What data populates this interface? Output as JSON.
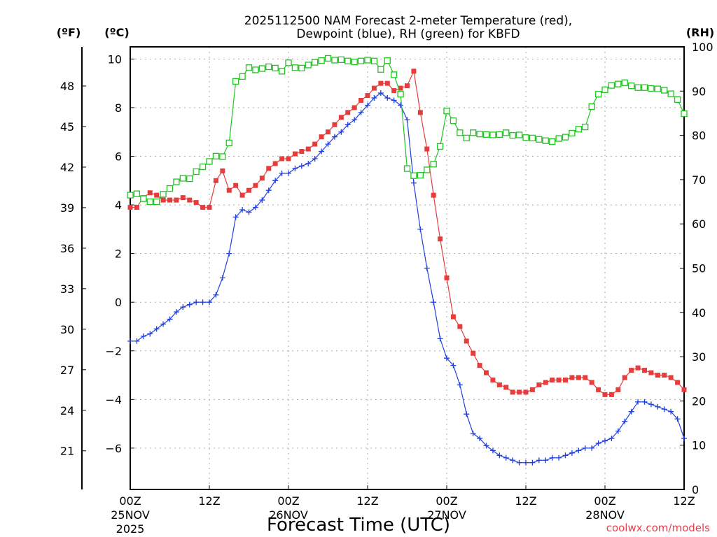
{
  "chart_data": {
    "type": "line",
    "title": [
      "2025112500 NAM Forecast 2-meter Temperature (red),",
      "Dewpoint (blue), RH (green) for KBFD"
    ],
    "xlabel": "Forecast Time (UTC)",
    "credit": "coolwx.com/models",
    "units": {
      "fahrenheit": "(ºF)",
      "celsius": "(ºC)",
      "rh": "(RH)"
    },
    "x_range_hours": [
      0,
      84
    ],
    "x_ticks": [
      {
        "hour": 0,
        "label": "00Z",
        "date": "25NOV",
        "year": "2025"
      },
      {
        "hour": 12,
        "label": "12Z",
        "date": "",
        "year": ""
      },
      {
        "hour": 24,
        "label": "00Z",
        "date": "26NOV",
        "year": ""
      },
      {
        "hour": 36,
        "label": "12Z",
        "date": "",
        "year": ""
      },
      {
        "hour": 48,
        "label": "00Z",
        "date": "27NOV",
        "year": ""
      },
      {
        "hour": 60,
        "label": "12Z",
        "date": "",
        "year": ""
      },
      {
        "hour": 72,
        "label": "00Z",
        "date": "28NOV",
        "year": ""
      },
      {
        "hour": 84,
        "label": "12Z",
        "date": "",
        "year": ""
      }
    ],
    "y_celsius": {
      "range": [
        -7.7,
        10.5
      ],
      "ticks": [
        10,
        8,
        6,
        4,
        2,
        0,
        -2,
        -4,
        -6
      ],
      "labels": [
        "10",
        "8",
        "6",
        "4",
        "2",
        "0",
        "−2",
        "−4",
        "−6"
      ]
    },
    "y_fahrenheit": {
      "range": [
        18.14,
        50.9
      ],
      "ticks": [
        48,
        45,
        42,
        39,
        36,
        33,
        30,
        27,
        24,
        21
      ],
      "labels": [
        "48",
        "45",
        "42",
        "39",
        "36",
        "33",
        "30",
        "27",
        "24",
        "21"
      ]
    },
    "y_rh": {
      "range": [
        0,
        100
      ],
      "ticks": [
        100,
        90,
        80,
        70,
        60,
        50,
        40,
        30,
        20,
        10,
        0
      ],
      "labels": [
        "100",
        "90",
        "80",
        "70",
        "60",
        "50",
        "40",
        "30",
        "20",
        "10",
        "0"
      ]
    },
    "grid": true,
    "series": [
      {
        "name": "2-meter Temperature",
        "axis": "celsius",
        "color": "#e63c3c",
        "marker": "filled-square",
        "x": [
          0,
          1,
          2,
          3,
          4,
          5,
          6,
          7,
          8,
          9,
          10,
          11,
          12,
          13,
          14,
          15,
          16,
          17,
          18,
          19,
          20,
          21,
          22,
          23,
          24,
          25,
          26,
          27,
          28,
          29,
          30,
          31,
          32,
          33,
          34,
          35,
          36,
          37,
          38,
          39,
          40,
          41,
          42,
          43,
          44,
          45,
          46,
          47,
          48,
          49,
          50,
          51,
          52,
          53,
          54,
          55,
          56,
          57,
          58,
          59,
          60,
          61,
          62,
          63,
          64,
          65,
          66,
          67,
          68,
          69,
          70,
          71,
          72,
          73,
          74,
          75,
          76,
          77,
          78,
          79,
          80,
          81,
          82,
          83,
          84
        ],
        "y": [
          3.9,
          3.9,
          4.3,
          4.5,
          4.4,
          4.2,
          4.2,
          4.2,
          4.3,
          4.2,
          4.1,
          3.9,
          3.9,
          5.0,
          5.4,
          4.6,
          4.8,
          4.4,
          4.6,
          4.8,
          5.1,
          5.5,
          5.7,
          5.9,
          5.9,
          6.1,
          6.2,
          6.3,
          6.5,
          6.8,
          7.0,
          7.3,
          7.6,
          7.8,
          8.0,
          8.3,
          8.5,
          8.8,
          9.0,
          9.0,
          8.7,
          8.8,
          8.9,
          9.5,
          7.8,
          6.3,
          4.4,
          2.6,
          1.0,
          -0.6,
          -1.0,
          -1.6,
          -2.1,
          -2.6,
          -2.9,
          -3.2,
          -3.4,
          -3.5,
          -3.7,
          -3.7,
          -3.7,
          -3.6,
          -3.4,
          -3.3,
          -3.2,
          -3.2,
          -3.2,
          -3.1,
          -3.1,
          -3.1,
          -3.3,
          -3.6,
          -3.8,
          -3.8,
          -3.6,
          -3.1,
          -2.8,
          -2.7,
          -2.8,
          -2.9,
          -3.0,
          -3.0,
          -3.1,
          -3.3,
          -3.6
        ]
      },
      {
        "name": "Dewpoint",
        "axis": "celsius",
        "color": "#2040e0",
        "marker": "plus",
        "x": [
          0,
          1,
          2,
          3,
          4,
          5,
          6,
          7,
          8,
          9,
          10,
          11,
          12,
          13,
          14,
          15,
          16,
          17,
          18,
          19,
          20,
          21,
          22,
          23,
          24,
          25,
          26,
          27,
          28,
          29,
          30,
          31,
          32,
          33,
          34,
          35,
          36,
          37,
          38,
          39,
          40,
          41,
          42,
          43,
          44,
          45,
          46,
          47,
          48,
          49,
          50,
          51,
          52,
          53,
          54,
          55,
          56,
          57,
          58,
          59,
          60,
          61,
          62,
          63,
          64,
          65,
          66,
          67,
          68,
          69,
          70,
          71,
          72,
          73,
          74,
          75,
          76,
          77,
          78,
          79,
          80,
          81,
          82,
          83,
          84
        ],
        "y": [
          -1.6,
          -1.6,
          -1.4,
          -1.3,
          -1.1,
          -0.9,
          -0.7,
          -0.4,
          -0.2,
          -0.1,
          0.0,
          0.0,
          0.0,
          0.3,
          1.0,
          2.0,
          3.5,
          3.8,
          3.7,
          3.9,
          4.2,
          4.6,
          5.0,
          5.3,
          5.3,
          5.5,
          5.6,
          5.7,
          5.9,
          6.2,
          6.5,
          6.8,
          7.0,
          7.3,
          7.5,
          7.8,
          8.1,
          8.4,
          8.6,
          8.4,
          8.3,
          8.1,
          7.5,
          4.9,
          3.0,
          1.4,
          0.0,
          -1.5,
          -2.3,
          -2.6,
          -3.4,
          -4.6,
          -5.4,
          -5.6,
          -5.9,
          -6.1,
          -6.3,
          -6.4,
          -6.5,
          -6.6,
          -6.6,
          -6.6,
          -6.5,
          -6.5,
          -6.4,
          -6.4,
          -6.3,
          -6.2,
          -6.1,
          -6.0,
          -6.0,
          -5.8,
          -5.7,
          -5.6,
          -5.3,
          -4.9,
          -4.5,
          -4.1,
          -4.1,
          -4.2,
          -4.3,
          -4.4,
          -4.5,
          -4.8,
          -5.6
        ]
      },
      {
        "name": "RH",
        "axis": "rh",
        "color": "#22c422",
        "marker": "open-square",
        "x": [
          0,
          1,
          2,
          3,
          4,
          5,
          6,
          7,
          8,
          9,
          10,
          11,
          12,
          13,
          14,
          15,
          16,
          17,
          18,
          19,
          20,
          21,
          22,
          23,
          24,
          25,
          26,
          27,
          28,
          29,
          30,
          31,
          32,
          33,
          34,
          35,
          36,
          37,
          38,
          39,
          40,
          41,
          42,
          43,
          44,
          45,
          46,
          47,
          48,
          49,
          50,
          51,
          52,
          53,
          54,
          55,
          56,
          57,
          58,
          59,
          60,
          61,
          62,
          63,
          64,
          65,
          66,
          67,
          68,
          69,
          70,
          71,
          72,
          73,
          74,
          75,
          76,
          77,
          78,
          79,
          80,
          81,
          82,
          83,
          84
        ],
        "y": [
          66.5,
          66.8,
          65.7,
          65,
          65,
          66.7,
          68,
          69.5,
          70.3,
          70.2,
          71.8,
          72.9,
          74.1,
          75.3,
          75.2,
          78.3,
          92.2,
          93.3,
          95.3,
          94.8,
          95.1,
          95.5,
          95.2,
          94.5,
          96.4,
          95.3,
          95.2,
          95.9,
          96.5,
          96.9,
          97.4,
          97.0,
          97.1,
          96.8,
          96.6,
          96.8,
          97.0,
          96.8,
          94.9,
          96.9,
          93.7,
          89.3,
          72.5,
          70.9,
          71.0,
          72.2,
          73.5,
          77.5,
          85.5,
          83.3,
          80.6,
          79.4,
          80.6,
          80.3,
          80.2,
          80.1,
          80.2,
          80.6,
          80.0,
          80.1,
          79.5,
          79.4,
          79.1,
          78.8,
          78.6,
          79.3,
          79.6,
          80.5,
          81.4,
          81.9,
          86.5,
          89.3,
          90.3,
          91.3,
          91.6,
          91.9,
          91.2,
          90.8,
          90.8,
          90.6,
          90.5,
          90.2,
          89.4,
          88.1,
          84.9
        ]
      }
    ]
  }
}
